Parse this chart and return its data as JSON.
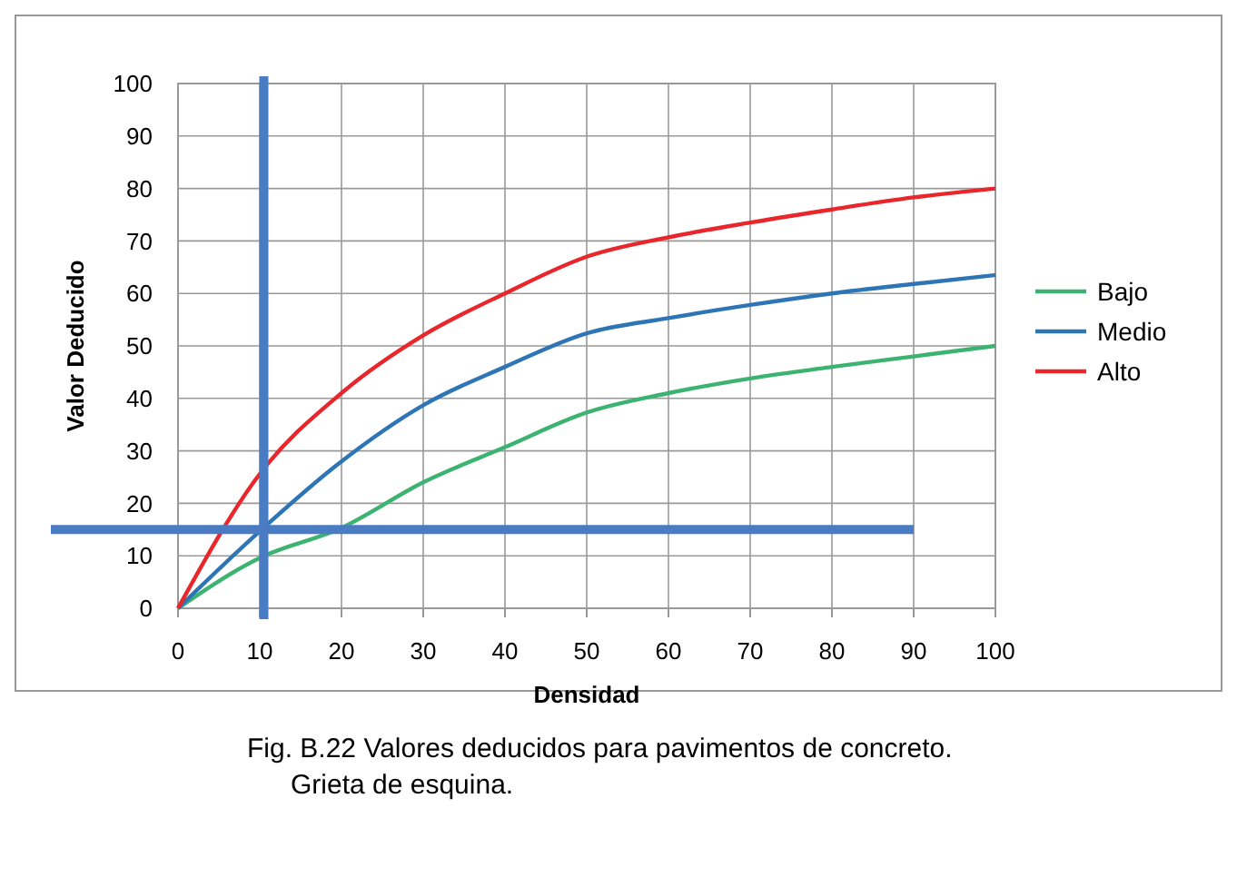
{
  "chart_data": {
    "type": "line",
    "xlabel": "Densidad",
    "ylabel": "Valor Deducido",
    "x": [
      0,
      10,
      20,
      30,
      40,
      50,
      60,
      70,
      80,
      90,
      100
    ],
    "series": [
      {
        "name": "Bajo",
        "color": "#3cb371",
        "values": [
          0,
          9.6,
          15.3,
          24,
          30.7,
          37.3,
          41,
          43.8,
          46,
          48,
          50
        ]
      },
      {
        "name": "Medio",
        "color": "#2e75b6",
        "values": [
          0,
          14.7,
          28,
          38.7,
          46,
          52.4,
          55.3,
          57.8,
          60,
          61.8,
          63.5
        ]
      },
      {
        "name": "Alto",
        "color": "#e8262b",
        "values": [
          0,
          25.6,
          41,
          52,
          60,
          67,
          70.7,
          73.5,
          76,
          78.3,
          80
        ]
      }
    ],
    "xlim": [
      0,
      100
    ],
    "xticks": [
      0,
      10,
      20,
      30,
      40,
      50,
      60,
      70,
      80,
      90,
      100
    ],
    "ylim": [
      0,
      100
    ],
    "yticks": [
      0,
      10,
      20,
      30,
      40,
      50,
      60,
      70,
      80,
      90,
      100
    ],
    "grid": true,
    "legend": "right",
    "marker": "none",
    "line_style": "solid",
    "ref_lines": [
      {
        "axis": "x",
        "value": 10.5,
        "color": "#4a7cc4"
      },
      {
        "axis": "y",
        "value": 15,
        "color": "#4a7cc4"
      }
    ],
    "annotations": [
      "Fig. B.22  Valores deducidos para pavimentos de concreto.\nGrieta de esquina."
    ]
  }
}
